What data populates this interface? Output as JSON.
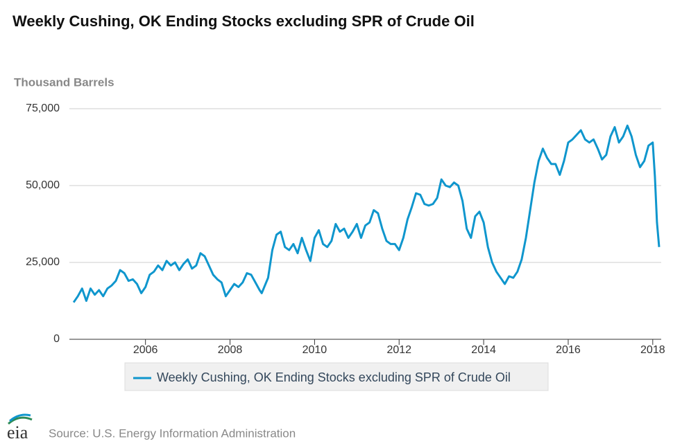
{
  "chart_data": {
    "type": "line",
    "title": "Weekly Cushing, OK Ending Stocks excluding SPR of Crude Oil",
    "y_label": "Thousand Barrels",
    "source": "Source: U.S. Energy Information Administration",
    "logo": "eia",
    "xlim": [
      2004.2,
      2018.2
    ],
    "xticks": [
      2006,
      2008,
      2010,
      2012,
      2014,
      2016,
      2018
    ],
    "ylim": [
      0,
      75000
    ],
    "yticks": [
      0,
      {
        "value": 25000,
        "label": "25,000"
      },
      {
        "value": 50000,
        "label": "50,000"
      },
      {
        "value": 75000,
        "label": "75,000"
      }
    ],
    "grid": true,
    "x": [
      2004.3,
      2004.4,
      2004.5,
      2004.6,
      2004.7,
      2004.8,
      2004.9,
      2005.0,
      2005.1,
      2005.2,
      2005.3,
      2005.4,
      2005.5,
      2005.6,
      2005.7,
      2005.8,
      2005.9,
      2006.0,
      2006.1,
      2006.2,
      2006.3,
      2006.4,
      2006.5,
      2006.6,
      2006.7,
      2006.8,
      2006.9,
      2007.0,
      2007.1,
      2007.2,
      2007.3,
      2007.4,
      2007.5,
      2007.6,
      2007.7,
      2007.8,
      2007.9,
      2008.0,
      2008.1,
      2008.2,
      2008.3,
      2008.4,
      2008.5,
      2008.6,
      2008.7,
      2008.75,
      2008.9,
      2009.0,
      2009.1,
      2009.2,
      2009.3,
      2009.4,
      2009.5,
      2009.6,
      2009.7,
      2009.8,
      2009.9,
      2010.0,
      2010.1,
      2010.2,
      2010.3,
      2010.4,
      2010.5,
      2010.6,
      2010.7,
      2010.8,
      2010.9,
      2011.0,
      2011.1,
      2011.2,
      2011.3,
      2011.4,
      2011.5,
      2011.6,
      2011.7,
      2011.8,
      2011.9,
      2012.0,
      2012.1,
      2012.2,
      2012.3,
      2012.4,
      2012.5,
      2012.6,
      2012.7,
      2012.8,
      2012.9,
      2013.0,
      2013.1,
      2013.2,
      2013.3,
      2013.4,
      2013.5,
      2013.6,
      2013.7,
      2013.8,
      2013.9,
      2014.0,
      2014.1,
      2014.2,
      2014.3,
      2014.4,
      2014.5,
      2014.6,
      2014.7,
      2014.8,
      2014.9,
      2015.0,
      2015.1,
      2015.2,
      2015.3,
      2015.4,
      2015.5,
      2015.6,
      2015.7,
      2015.8,
      2015.9,
      2016.0,
      2016.1,
      2016.2,
      2016.3,
      2016.4,
      2016.5,
      2016.6,
      2016.7,
      2016.8,
      2016.9,
      2017.0,
      2017.1,
      2017.2,
      2017.3,
      2017.4,
      2017.5,
      2017.6,
      2017.7,
      2017.8,
      2017.9,
      2018.0,
      2018.05,
      2018.1,
      2018.15
    ],
    "series": [
      {
        "name": "Weekly Cushing, OK Ending Stocks excluding SPR of Crude Oil",
        "color": "#0f96cd",
        "values": [
          12000,
          14000,
          16500,
          12500,
          16500,
          14500,
          16000,
          14000,
          16500,
          17500,
          19000,
          22500,
          21500,
          19000,
          19500,
          18000,
          15000,
          17000,
          21000,
          22000,
          24000,
          22500,
          25500,
          24000,
          25000,
          22500,
          24500,
          26000,
          23000,
          24000,
          28000,
          27000,
          24000,
          21000,
          19500,
          18500,
          14000,
          16000,
          18000,
          17000,
          18500,
          21500,
          21000,
          18500,
          16000,
          15000,
          20000,
          29000,
          34000,
          35000,
          30000,
          29000,
          31000,
          28000,
          33000,
          29000,
          25500,
          33000,
          35500,
          31000,
          30000,
          32000,
          37500,
          35000,
          36000,
          33000,
          35000,
          37500,
          33000,
          37000,
          38000,
          42000,
          41000,
          36000,
          32000,
          31000,
          31000,
          29000,
          33000,
          39000,
          43000,
          47500,
          47000,
          44000,
          43500,
          44000,
          46000,
          52000,
          50000,
          49500,
          51000,
          50000,
          45000,
          36000,
          33000,
          40000,
          41500,
          38000,
          30000,
          25000,
          22000,
          20000,
          18000,
          20500,
          20000,
          22000,
          26000,
          33000,
          42000,
          51000,
          58000,
          62000,
          59000,
          57000,
          57000,
          53500,
          58000,
          64000,
          65000,
          66500,
          68000,
          65000,
          64000,
          65000,
          62000,
          58500,
          60000,
          66000,
          69000,
          64000,
          66000,
          69500,
          66000,
          60000,
          56000,
          58000,
          63000,
          64000,
          53000,
          38000,
          30000
        ]
      }
    ]
  }
}
